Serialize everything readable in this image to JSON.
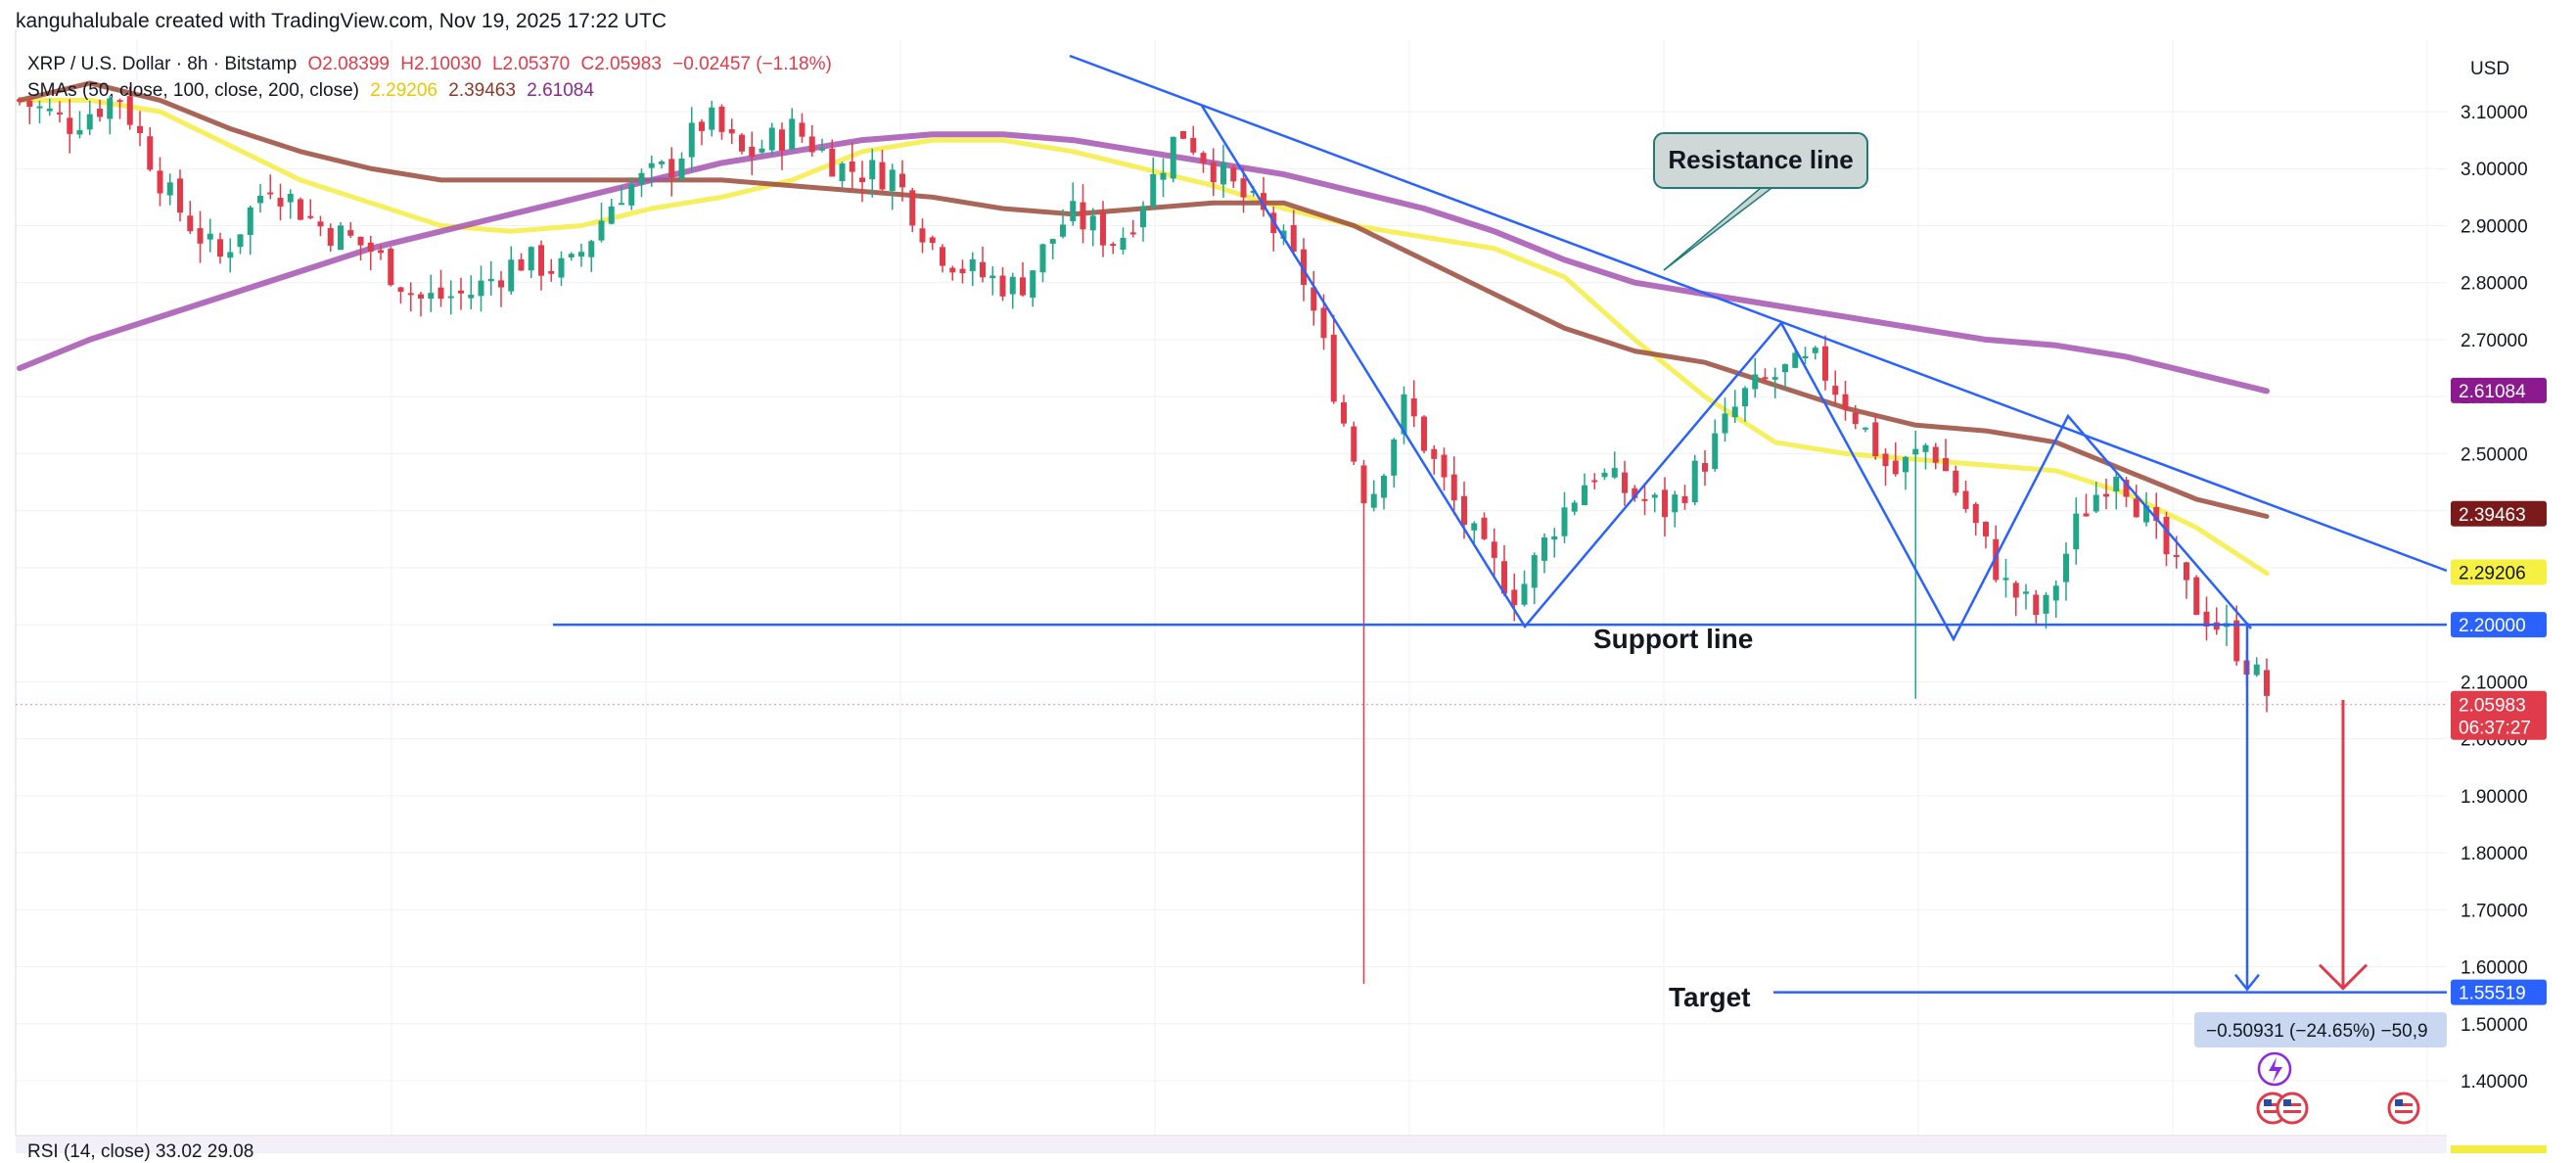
{
  "header": {
    "attribution": "kanguhalubale created with TradingView.com, Nov 19, 2025 17:22 UTC"
  },
  "legend": {
    "symbol": "XRP / U.S. Dollar · 8h · Bitstamp",
    "open": "O2.08399",
    "high": "H2.10030",
    "low": "L2.05370",
    "close": "C2.05983",
    "change": "−0.02457 (−1.18%)",
    "sma_label": "SMAs (50, close, 100, close, 200, close)",
    "sma50_value": "2.29206",
    "sma100_value": "2.39463",
    "sma200_value": "2.61084"
  },
  "rsi_label": "RSI (14, close)  33.02  29.08",
  "colors": {
    "up": "#22a68a",
    "down": "#e03b4a",
    "sma50": "#f5ec42",
    "sma100": "#9a4a3a",
    "sma200": "#a455b0",
    "drawing": "#2962ff",
    "target_arrow": "#e03b4a",
    "grid": "#f0f1f3"
  },
  "annotations": {
    "resistance": "Resistance line",
    "support": "Support line",
    "target": "Target",
    "measure": "−0.50931 (−24.65%) −50,9"
  },
  "price_tags": {
    "sma200": "2.61084",
    "sma100": "2.39463",
    "sma50": "2.29206",
    "support": "2.20000",
    "last": "2.05983",
    "countdown": "06:37:27",
    "target": "1.55519"
  },
  "chart_data": {
    "type": "candlestick",
    "currency": "USD",
    "y_ticks": [
      "3.10000",
      "3.00000",
      "2.90000",
      "2.80000",
      "2.70000",
      "2.60000",
      "2.50000",
      "2.40000",
      "2.30000",
      "2.20000",
      "2.10000",
      "2.00000",
      "1.90000",
      "1.80000",
      "1.70000",
      "1.60000",
      "1.50000",
      "1.40000"
    ],
    "ylim": [
      1.36,
      3.14
    ],
    "support_level": 2.2,
    "target_level": 1.55519,
    "last_price": 2.05983,
    "resistance_line": {
      "points": [
        [
          0,
          3.2
        ],
        [
          1360,
          2.51
        ],
        [
          1600,
          2.28
        ]
      ]
    },
    "pattern_path": [
      [
        725,
        3.12
      ],
      [
        925,
        2.2
      ],
      [
        1083,
        2.73
      ],
      [
        1188,
        2.18
      ],
      [
        1258,
        2.57
      ],
      [
        1370,
        2.18
      ]
    ],
    "measure": {
      "from_price": 2.0645,
      "to_price": 1.55519,
      "change": -0.50931,
      "pct": -24.65
    },
    "sma_series": [
      {
        "name": "SMA 50",
        "values": [
          3.12,
          3.12,
          3.1,
          3.04,
          2.98,
          2.94,
          2.9,
          2.89,
          2.9,
          2.93,
          2.95,
          2.98,
          3.03,
          3.05,
          3.05,
          3.03,
          3.0,
          2.97,
          2.93,
          2.9,
          2.88,
          2.86,
          2.81,
          2.7,
          2.6,
          2.52,
          2.5,
          2.49,
          2.48,
          2.47,
          2.43,
          2.37,
          2.29
        ]
      },
      {
        "name": "SMA 100",
        "values": [
          3.12,
          3.15,
          3.12,
          3.07,
          3.03,
          3.0,
          2.98,
          2.98,
          2.98,
          2.98,
          2.98,
          2.97,
          2.96,
          2.95,
          2.93,
          2.92,
          2.93,
          2.94,
          2.94,
          2.9,
          2.84,
          2.78,
          2.72,
          2.68,
          2.66,
          2.62,
          2.58,
          2.55,
          2.54,
          2.52,
          2.47,
          2.42,
          2.39
        ]
      },
      {
        "name": "SMA 200",
        "values": [
          2.65,
          2.7,
          2.74,
          2.78,
          2.82,
          2.86,
          2.89,
          2.92,
          2.95,
          2.98,
          3.01,
          3.03,
          3.05,
          3.06,
          3.06,
          3.05,
          3.03,
          3.01,
          2.99,
          2.96,
          2.93,
          2.89,
          2.84,
          2.8,
          2.78,
          2.76,
          2.74,
          2.72,
          2.7,
          2.69,
          2.67,
          2.64,
          2.61
        ]
      }
    ],
    "sma_span": {
      "start_index": 0,
      "end_index": 225
    },
    "candle_count": 225,
    "close_path": [
      [
        0,
        3.12
      ],
      [
        8,
        3.08
      ],
      [
        16,
        3.13
      ],
      [
        24,
        2.95
      ],
      [
        32,
        2.84
      ],
      [
        40,
        2.98
      ],
      [
        48,
        2.9
      ],
      [
        56,
        2.86
      ],
      [
        64,
        2.77
      ],
      [
        72,
        2.78
      ],
      [
        80,
        2.84
      ],
      [
        88,
        2.82
      ],
      [
        96,
        2.96
      ],
      [
        104,
        3.0
      ],
      [
        110,
        3.09
      ],
      [
        116,
        3.02
      ],
      [
        124,
        3.07
      ],
      [
        132,
        3.0
      ],
      [
        140,
        2.99
      ],
      [
        146,
        2.87
      ],
      [
        152,
        2.82
      ],
      [
        160,
        2.79
      ],
      [
        168,
        2.92
      ],
      [
        176,
        2.87
      ],
      [
        186,
        3.07
      ],
      [
        194,
        2.97
      ],
      [
        200,
        2.91
      ],
      [
        206,
        2.8
      ],
      [
        212,
        2.56
      ],
      [
        216,
        2.41
      ],
      [
        222,
        2.59
      ],
      [
        228,
        2.45
      ],
      [
        234,
        2.33
      ],
      [
        240,
        2.25
      ],
      [
        246,
        2.38
      ],
      [
        252,
        2.47
      ],
      [
        258,
        2.43
      ],
      [
        264,
        2.4
      ],
      [
        270,
        2.49
      ],
      [
        276,
        2.6
      ],
      [
        282,
        2.64
      ],
      [
        288,
        2.66
      ],
      [
        294,
        2.57
      ],
      [
        300,
        2.46
      ],
      [
        306,
        2.52
      ],
      [
        312,
        2.4
      ],
      [
        318,
        2.27
      ],
      [
        324,
        2.21
      ],
      [
        330,
        2.39
      ],
      [
        336,
        2.48
      ],
      [
        342,
        2.36
      ],
      [
        348,
        2.24
      ],
      [
        354,
        2.18
      ],
      [
        360,
        2.08
      ]
    ]
  }
}
